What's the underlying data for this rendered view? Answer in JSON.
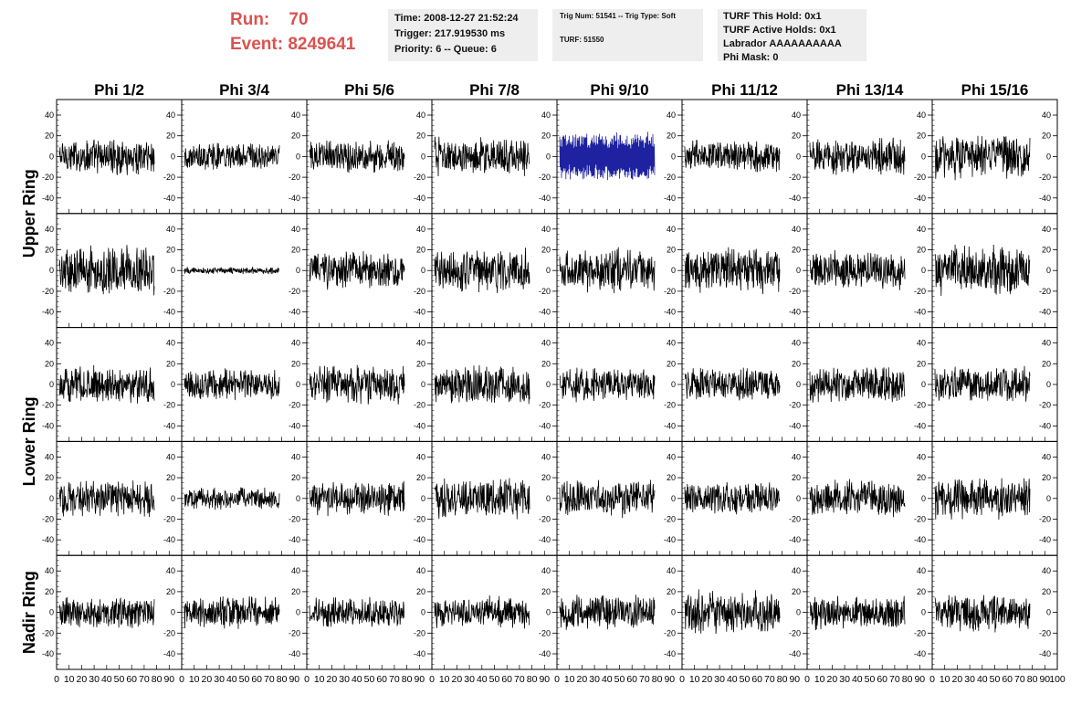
{
  "header": {
    "run_label": "Run:",
    "run_value": "70",
    "event_label": "Event:",
    "event_value": "8249641",
    "time_line": "Time: 2008-12-27 21:52:24",
    "trigger_line": "Trigger: 217.919530 ms",
    "priority_line": "Priority: 6 -- Queue: 6",
    "trig_line": "Trig Num: 51541 -- Trig Type: Soft",
    "turf_line": "TURF: 51550",
    "turf_hold_line": "TURF This Hold: 0x1",
    "turf_active_line": "TURF Active Holds: 0x1",
    "labrador_line": "Labrador AAAAAAAAAA",
    "phi_mask_line": "Phi Mask: 0",
    "accent_color": "#d9534f",
    "box_color": "#eeeeee"
  },
  "chart_data": {
    "type": "line",
    "columns": [
      "Phi 1/2",
      "Phi 3/4",
      "Phi 5/6",
      "Phi 7/8",
      "Phi 9/10",
      "Phi 11/12",
      "Phi 13/14",
      "Phi 15/16"
    ],
    "rows": [
      "Upper Ring",
      "Upper Ring",
      "Lower Ring",
      "Lower Ring",
      "Nadir Ring"
    ],
    "row_labels": [
      "Upper Ring",
      "Lower Ring",
      "Nadir Ring"
    ],
    "xlim": [
      0,
      100
    ],
    "ylim": [
      -55,
      55
    ],
    "y_ticks": [
      -40,
      -20,
      0,
      20,
      40
    ],
    "x_tick_labels": [
      "0",
      "10",
      "20",
      "30",
      "40",
      "50",
      "60",
      "70",
      "80",
      "90",
      "100"
    ],
    "samples_per_trace": 260,
    "default_color": "#000000",
    "highlight_color": "#1e22a0",
    "highlight": [
      {
        "row": 0,
        "col": 4
      }
    ],
    "amplitudes": [
      [
        16,
        12,
        15,
        17,
        21,
        14,
        16,
        20
      ],
      [
        22,
        3,
        17,
        20,
        19,
        20,
        17,
        22
      ],
      [
        16,
        14,
        17,
        17,
        15,
        15,
        16,
        16
      ],
      [
        16,
        10,
        15,
        17,
        16,
        14,
        16,
        18
      ],
      [
        14,
        14,
        13,
        14,
        15,
        19,
        15,
        17
      ]
    ]
  }
}
